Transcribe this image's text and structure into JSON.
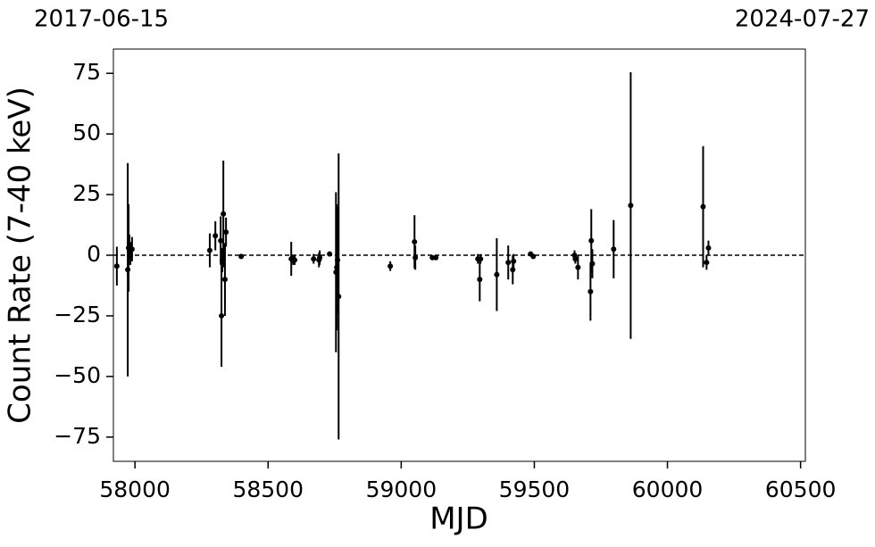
{
  "chart_data": {
    "type": "errorbar",
    "xlabel": "MJD",
    "ylabel": "Count Rate (7-40 keV)",
    "top_left_label": "2017-06-15",
    "top_right_label": "2024-07-27",
    "xlim": [
      57919,
      60518
    ],
    "ylim": [
      -85,
      85
    ],
    "xticks": [
      58000,
      58500,
      59000,
      59500,
      60000,
      60500
    ],
    "yticks": [
      {
        "value": -75,
        "label": "−75"
      },
      {
        "value": -50,
        "label": "−50"
      },
      {
        "value": -25,
        "label": "−25"
      },
      0,
      25,
      50,
      75
    ],
    "reference_line": 0,
    "color": "#000000",
    "x": [
      57932,
      57973,
      57976,
      57979,
      57983,
      57989,
      58281,
      58302,
      58322,
      58325,
      58328,
      58332,
      58338,
      58342,
      58399,
      58587,
      58594,
      58600,
      58671,
      58691,
      58694,
      58731,
      58755,
      58758,
      58761,
      58765,
      58959,
      59050,
      59053,
      59117,
      59130,
      59288,
      59295,
      59298,
      59359,
      59402,
      59419,
      59422,
      59486,
      59496,
      59651,
      59654,
      59664,
      59711,
      59714,
      59718,
      59798,
      59862,
      60134,
      60147,
      60154
    ],
    "values": [
      -4.5,
      -6,
      3,
      4.5,
      0,
      2.5,
      2,
      8,
      6,
      -25,
      -2,
      17,
      -10,
      9.5,
      -0.5,
      -1.5,
      -2,
      -2,
      -1.5,
      -2,
      -1,
      0.5,
      -7,
      -5,
      -2,
      -17,
      -4.5,
      5.5,
      -1,
      -1,
      -1,
      -1.5,
      -10,
      -1.5,
      -8,
      -3,
      -6,
      -2.5,
      0.5,
      -0.5,
      0,
      -1.5,
      -5,
      -15,
      6,
      -3.5,
      2.5,
      20.5,
      20,
      -3,
      3
    ],
    "errors": [
      8,
      44,
      18,
      4,
      4,
      5,
      7,
      6,
      10,
      21,
      5,
      22,
      15,
      6,
      1,
      7,
      2,
      2,
      2,
      3,
      3,
      1,
      33,
      26,
      22,
      59,
      2,
      11,
      5,
      1,
      1,
      2,
      9,
      2,
      15,
      7,
      6,
      3,
      1,
      1,
      2,
      2,
      5,
      12,
      13,
      6,
      12,
      55,
      25,
      3,
      3
    ]
  }
}
